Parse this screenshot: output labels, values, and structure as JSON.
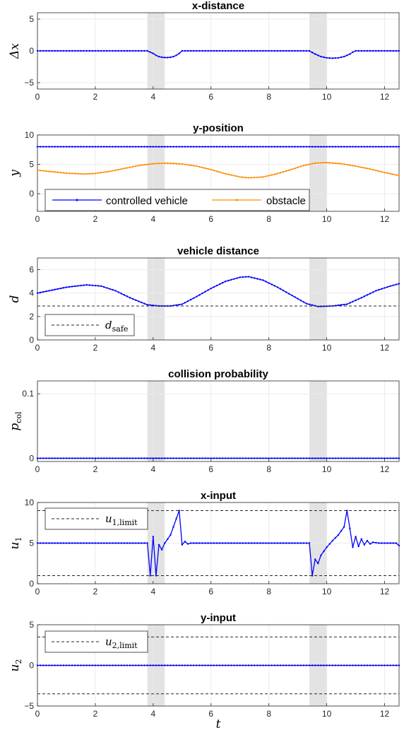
{
  "xlabel": "t",
  "colors": {
    "controlled": "#0000ff",
    "obstacle": "#ff8c00",
    "dashed": "#262626",
    "shade": "#e3e3e3",
    "grid": "#ebebeb"
  },
  "shaded_intervals": [
    [
      3.8,
      4.4
    ],
    [
      9.4,
      10.0
    ]
  ],
  "legend": {
    "controlled": "controlled vehicle",
    "obstacle": "obstacle",
    "d_safe_main": "d",
    "d_safe_sub": "safe",
    "u1_main": "u",
    "u1_sub": "1,limit",
    "u2_main": "u",
    "u2_sub": "2,limit"
  },
  "chart_data": [
    {
      "id": "xdist",
      "type": "line",
      "title": "x-distance",
      "ylabel": "Δx",
      "xlim": [
        0,
        12.5
      ],
      "ylim": [
        -6,
        6
      ],
      "yticks": [
        -5,
        0,
        5
      ],
      "xticks": [
        0,
        2,
        4,
        6,
        8,
        10,
        12
      ],
      "grid": true,
      "series": [
        {
          "key": "controlled",
          "style": "dotline",
          "x": [
            0,
            3.8,
            4.0,
            4.1,
            4.2,
            4.3,
            4.4,
            4.5,
            4.6,
            4.7,
            4.8,
            4.9,
            5.0,
            9.4,
            9.6,
            9.8,
            10.0,
            10.2,
            10.4,
            10.6,
            10.8,
            10.9,
            11.0,
            12.5
          ],
          "y": [
            0,
            0,
            -0.4,
            -0.7,
            -0.9,
            -1.0,
            -1.05,
            -1.05,
            -1.0,
            -0.9,
            -0.7,
            -0.4,
            0,
            0,
            -0.5,
            -0.9,
            -1.1,
            -1.15,
            -1.1,
            -0.9,
            -0.5,
            -0.2,
            0,
            0
          ]
        }
      ]
    },
    {
      "id": "ypos",
      "type": "line",
      "title": "y-position",
      "ylabel": "y",
      "xlim": [
        0,
        12.5
      ],
      "ylim": [
        -3,
        10
      ],
      "yticks": [
        0,
        5,
        10
      ],
      "xticks": [
        0,
        2,
        4,
        6,
        8,
        10,
        12
      ],
      "grid": true,
      "legend_position": "lower-left",
      "series": [
        {
          "key": "controlled",
          "name": "controlled vehicle",
          "style": "dotline",
          "x": [
            0,
            12.5
          ],
          "y": [
            8,
            8
          ]
        },
        {
          "key": "obstacle",
          "name": "obstacle",
          "style": "dotline",
          "x": [
            0,
            0.5,
            1.0,
            1.6,
            2.0,
            2.5,
            3.0,
            3.5,
            4.0,
            4.5,
            5.0,
            5.5,
            6.0,
            6.5,
            7.0,
            7.3,
            7.8,
            8.2,
            8.7,
            9.2,
            9.6,
            10.0,
            10.5,
            11.0,
            11.5,
            12.0,
            12.5
          ],
          "y": [
            4.0,
            3.75,
            3.5,
            3.35,
            3.45,
            3.8,
            4.3,
            4.8,
            5.1,
            5.2,
            5.05,
            4.7,
            4.1,
            3.4,
            2.85,
            2.7,
            2.85,
            3.3,
            4.0,
            4.8,
            5.2,
            5.3,
            5.1,
            4.7,
            4.2,
            3.6,
            3.1
          ]
        }
      ]
    },
    {
      "id": "dist",
      "type": "line",
      "title": "vehicle distance",
      "ylabel": "d",
      "xlim": [
        0,
        12.5
      ],
      "ylim": [
        0,
        7
      ],
      "yticks": [
        0,
        2,
        4,
        6
      ],
      "xticks": [
        0,
        2,
        4,
        6,
        8,
        10,
        12
      ],
      "grid": true,
      "legend_position": "lower-left",
      "series": [
        {
          "key": "controlled",
          "style": "dotline",
          "x": [
            0,
            0.5,
            1.0,
            1.7,
            2.2,
            2.7,
            3.2,
            3.8,
            4.2,
            4.6,
            5.0,
            5.5,
            6.0,
            6.5,
            7.0,
            7.3,
            7.8,
            8.3,
            8.8,
            9.3,
            9.7,
            10.2,
            10.7,
            11.2,
            11.7,
            12.2,
            12.5
          ],
          "y": [
            4.0,
            4.25,
            4.5,
            4.7,
            4.6,
            4.2,
            3.6,
            3.0,
            2.9,
            2.9,
            3.05,
            3.7,
            4.4,
            5.0,
            5.35,
            5.4,
            5.1,
            4.5,
            3.8,
            3.1,
            2.85,
            2.9,
            3.05,
            3.6,
            4.2,
            4.6,
            4.8
          ]
        },
        {
          "key": "d_safe",
          "style": "dashed",
          "x": [
            0,
            12.5
          ],
          "y": [
            2.9,
            2.9
          ]
        }
      ]
    },
    {
      "id": "pcol",
      "type": "line",
      "title": "collision probability",
      "ylabel": "p",
      "ylabel_sub": "col",
      "xlim": [
        0,
        12.5
      ],
      "ylim": [
        -0.005,
        0.12
      ],
      "yticks": [
        0,
        0.1
      ],
      "xticks": [
        0,
        2,
        4,
        6,
        8,
        10,
        12
      ],
      "grid": true,
      "series": [
        {
          "key": "controlled",
          "style": "dotline",
          "x": [
            0,
            12.5
          ],
          "y": [
            0,
            0
          ]
        }
      ]
    },
    {
      "id": "xin",
      "type": "line",
      "title": "x-input",
      "ylabel": "u",
      "ylabel_sub": "1",
      "xlim": [
        0,
        12.5
      ],
      "ylim": [
        0,
        10
      ],
      "yticks": [
        0,
        5,
        10
      ],
      "xticks": [
        0,
        2,
        4,
        6,
        8,
        10,
        12
      ],
      "grid": true,
      "legend_position": "upper-left",
      "series": [
        {
          "key": "controlled",
          "style": "dotline",
          "x": [
            0,
            3.8,
            3.9,
            4.0,
            4.1,
            4.2,
            4.3,
            4.4,
            4.6,
            4.7,
            4.8,
            4.9,
            5.0,
            5.1,
            5.2,
            5.3,
            9.4,
            9.5,
            9.6,
            9.7,
            9.8,
            10.0,
            10.2,
            10.4,
            10.6,
            10.7,
            10.8,
            10.9,
            11.0,
            11.1,
            11.2,
            11.3,
            11.4,
            11.5,
            11.6,
            11.8,
            12.0,
            12.2,
            12.4,
            12.5
          ],
          "y": [
            5,
            5,
            1,
            5.8,
            1,
            4.8,
            4.2,
            5,
            6,
            7,
            8,
            9,
            4.8,
            5.2,
            4.9,
            5,
            5,
            1,
            3,
            2.5,
            3.5,
            4.5,
            5.3,
            6,
            7,
            9,
            6.8,
            4.5,
            5.8,
            4.6,
            5.5,
            4.8,
            5.3,
            4.9,
            5.1,
            5,
            5,
            5,
            5,
            4.7
          ]
        },
        {
          "key": "u1_upper",
          "style": "dashed",
          "x": [
            0,
            12.5
          ],
          "y": [
            9,
            9
          ]
        },
        {
          "key": "u1_lower",
          "style": "dashed",
          "x": [
            0,
            12.5
          ],
          "y": [
            1,
            1
          ]
        }
      ]
    },
    {
      "id": "yin",
      "type": "line",
      "title": "y-input",
      "ylabel": "u",
      "ylabel_sub": "2",
      "xlim": [
        0,
        12.5
      ],
      "ylim": [
        -5,
        5
      ],
      "yticks": [
        -5,
        0,
        5
      ],
      "xticks": [
        0,
        2,
        4,
        6,
        8,
        10,
        12
      ],
      "grid": true,
      "legend_position": "upper-left",
      "series": [
        {
          "key": "controlled",
          "style": "dotline",
          "x": [
            0,
            12.5
          ],
          "y": [
            0,
            0
          ]
        },
        {
          "key": "u2_upper",
          "style": "dashed",
          "x": [
            0,
            12.5
          ],
          "y": [
            3.5,
            3.5
          ]
        },
        {
          "key": "u2_lower",
          "style": "dashed",
          "x": [
            0,
            12.5
          ],
          "y": [
            -3.5,
            -3.5
          ]
        }
      ]
    }
  ]
}
